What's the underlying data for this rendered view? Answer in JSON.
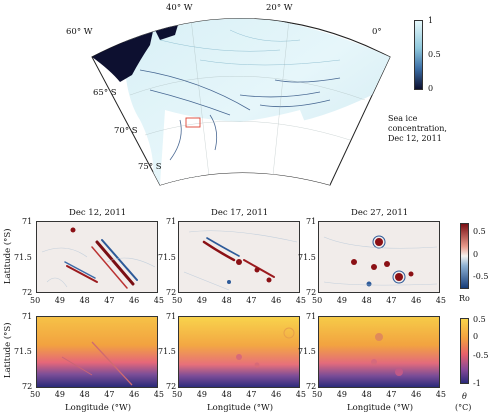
{
  "map": {
    "lon_labels": [
      "60° W",
      "40° W",
      "20° W",
      "0°"
    ],
    "lat_labels": [
      "65° S",
      "70° S",
      "75° S"
    ],
    "caption_lines": [
      "Sea ice",
      "concentration,",
      "Dec 12, 2011"
    ],
    "colorbar_ticks": [
      "1",
      "0.5",
      "0"
    ]
  },
  "panels": {
    "titles": [
      "Dec 12, 2011",
      "Dec 17, 2011",
      "Dec 27, 2011"
    ],
    "lat_ticks": [
      "71",
      "71.5",
      "72"
    ],
    "lon_ticks": [
      "50",
      "49",
      "48",
      "47",
      "46",
      "45"
    ],
    "ylabel": "Latitude (°S)",
    "xlabel": "Longitude (°W)",
    "ro_colorbar": {
      "ticks": [
        "0.5",
        "0",
        "-0.5"
      ],
      "label": "Ro"
    },
    "theta_colorbar": {
      "ticks": [
        "0.5",
        "0",
        "-0.5",
        "-1"
      ],
      "label_symbol": "θ",
      "label_unit": "(°C)"
    }
  },
  "colors": {
    "ice_high": "#e8f7fb",
    "ice_low": "#0d1030",
    "ro_pos": "#8b1015",
    "ro_neg": "#1f4f8f",
    "theta_warm": "#f9d44a",
    "theta_mid": "#e8606a",
    "theta_cold": "#2b2a7a"
  }
}
